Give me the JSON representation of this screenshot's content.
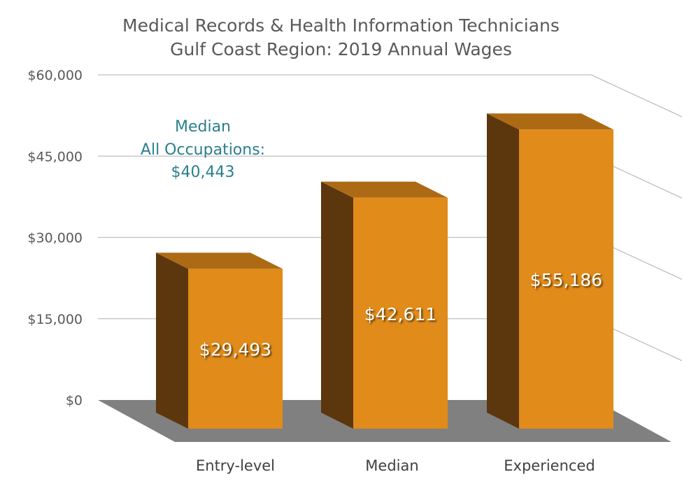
{
  "chart_data": {
    "type": "bar",
    "title": "Medical Records & Health Information Technicians",
    "subtitle": "Gulf Coast Region: 2019 Annual Wages",
    "categories": [
      "Entry-level",
      "Median",
      "Experienced"
    ],
    "values": [
      29493,
      42611,
      55186
    ],
    "data_labels": [
      "$29,493",
      "$42,611",
      "$55,186"
    ],
    "ylim": [
      0,
      60000
    ],
    "yticks": [
      0,
      15000,
      30000,
      45000,
      60000
    ],
    "ytick_labels": [
      "$0",
      "$15,000",
      "$30,000",
      "$45,000",
      "$60,000"
    ],
    "grid": true,
    "style": "3d",
    "annotation": {
      "line1": "Median",
      "line2": "All Occupations:",
      "line3": "$40,443"
    },
    "colors": {
      "front": "#e08b1a",
      "side": "#5c360c",
      "top": "#ad6a14",
      "floor": "#808080",
      "grid": "#bfbfbf",
      "annotation": "#2a7f8e"
    }
  }
}
